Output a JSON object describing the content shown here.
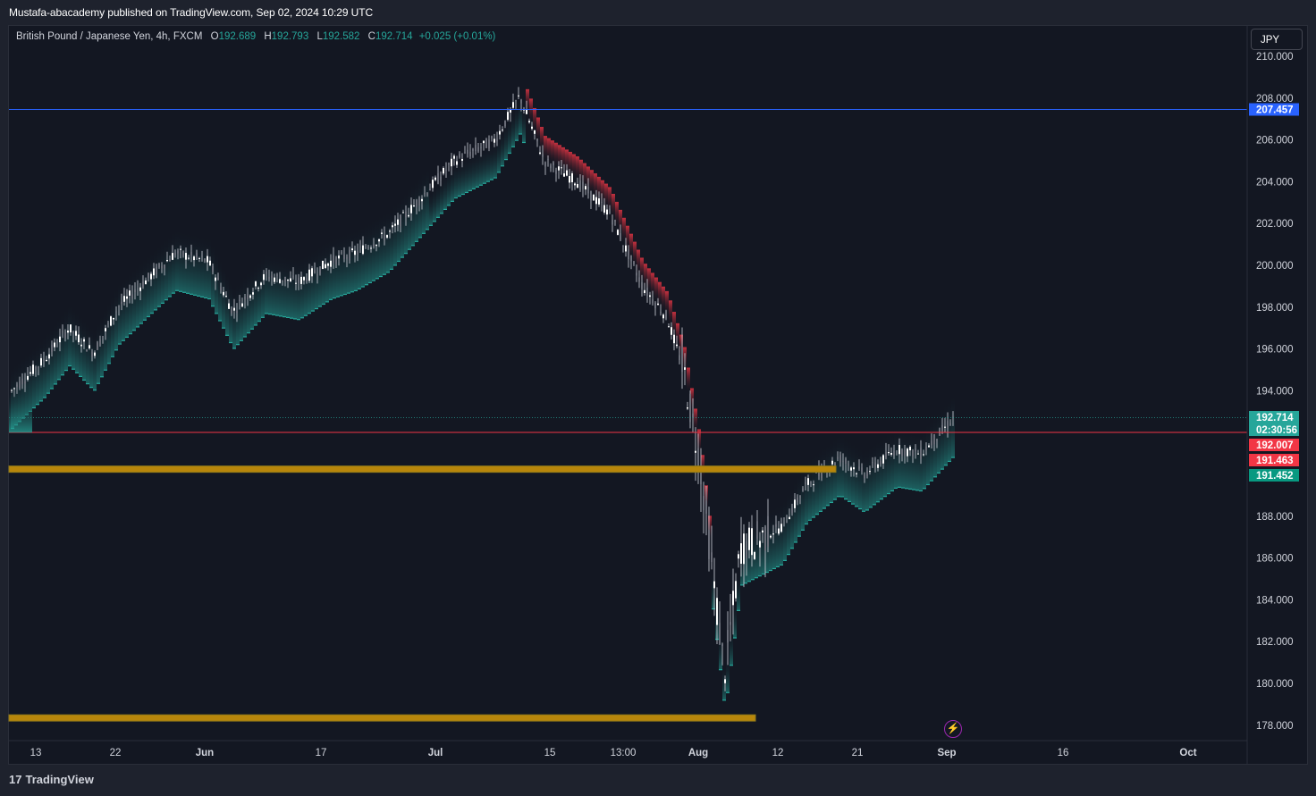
{
  "header": {
    "published_text": "Mustafa-abacademy published on TradingView.com, Sep 02, 2024 10:29 UTC"
  },
  "legend": {
    "symbol": "British Pound / Japanese Yen, 4h, FXCM",
    "o_label": "O",
    "o_value": "192.689",
    "h_label": "H",
    "h_value": "192.793",
    "l_label": "L",
    "l_value": "192.582",
    "c_label": "C",
    "c_value": "192.714",
    "change": "+0.025 (+0.01%)"
  },
  "currency_button": {
    "label": "JPY"
  },
  "price_axis": {
    "ticks": [
      "210.000",
      "208.000",
      "206.000",
      "204.000",
      "202.000",
      "200.000",
      "198.000",
      "196.000",
      "194.000",
      "192.000",
      "190.000",
      "188.000",
      "186.000",
      "184.000",
      "182.000",
      "180.000",
      "178.000"
    ]
  },
  "price_tags": [
    {
      "value": "207.457",
      "color": "#2962ff"
    },
    {
      "value": "192.714",
      "color": "#26a69a"
    },
    {
      "value": "02:30:56",
      "color": "#26a69a"
    },
    {
      "value": "192.007",
      "color": "#f23645"
    },
    {
      "value": "191.463",
      "color": "#f23645"
    },
    {
      "value": "191.452",
      "color": "#089981"
    }
  ],
  "time_axis": {
    "labels": [
      "13",
      "22",
      "Jun",
      "17",
      "Jul",
      "15",
      "13:00",
      "Aug",
      "12",
      "21",
      "Sep",
      "16",
      "Oct"
    ]
  },
  "footer": {
    "brand": "TradingView",
    "brand_mark": "17"
  },
  "colors": {
    "background": "#131722",
    "panel": "#1e222d",
    "bull": "#26a69a",
    "bear": "#f23645",
    "zone": "#b8860b",
    "blue_line": "#2962ff"
  },
  "chart_data": {
    "type": "candlestick",
    "title": "British Pound / Japanese Yen, 4h, FXCM",
    "ylim": [
      177,
      211
    ],
    "x_labels": [
      "13",
      "22",
      "Jun",
      "17",
      "Jul",
      "15",
      "13:00",
      "Aug",
      "12",
      "21",
      "Sep",
      "16",
      "Oct"
    ],
    "last_price": 192.714,
    "horizontal_lines": [
      207.457,
      192.007
    ],
    "zones": [
      [
        190.1,
        190.4
      ],
      [
        178.2,
        178.5
      ]
    ],
    "price_path": [
      {
        "t": "May 10",
        "v": 194.0
      },
      {
        "t": "May 14",
        "v": 195.5
      },
      {
        "t": "May 17",
        "v": 197.0
      },
      {
        "t": "May 20",
        "v": 195.8
      },
      {
        "t": "May 23",
        "v": 198.0
      },
      {
        "t": "May 27",
        "v": 199.5
      },
      {
        "t": "May 30",
        "v": 200.6
      },
      {
        "t": "Jun 3",
        "v": 200.2
      },
      {
        "t": "Jun 6",
        "v": 197.8
      },
      {
        "t": "Jun 10",
        "v": 199.5
      },
      {
        "t": "Jun 14",
        "v": 199.2
      },
      {
        "t": "Jun 18",
        "v": 200.2
      },
      {
        "t": "Jun 21",
        "v": 200.6
      },
      {
        "t": "Jun 25",
        "v": 201.5
      },
      {
        "t": "Jun 28",
        "v": 202.8
      },
      {
        "t": "Jul 3",
        "v": 205.0
      },
      {
        "t": "Jul 8",
        "v": 206.0
      },
      {
        "t": "Jul 11",
        "v": 208.1
      },
      {
        "t": "Jul 14",
        "v": 205.0
      },
      {
        "t": "Jul 18",
        "v": 204.0
      },
      {
        "t": "Jul 22",
        "v": 202.5
      },
      {
        "t": "Jul 26",
        "v": 199.0
      },
      {
        "t": "Jul 29",
        "v": 197.5
      },
      {
        "t": "Jul 31",
        "v": 195.0
      },
      {
        "t": "Aug 2",
        "v": 190.5
      },
      {
        "t": "Aug 5",
        "v": 180.5
      },
      {
        "t": "Aug 7",
        "v": 186.5
      },
      {
        "t": "Aug 12",
        "v": 187.5
      },
      {
        "t": "Aug 15",
        "v": 189.5
      },
      {
        "t": "Aug 19",
        "v": 190.8
      },
      {
        "t": "Aug 22",
        "v": 190.0
      },
      {
        "t": "Aug 26",
        "v": 191.2
      },
      {
        "t": "Aug 29",
        "v": 191.0
      },
      {
        "t": "Sep 2",
        "v": 192.7
      }
    ]
  }
}
